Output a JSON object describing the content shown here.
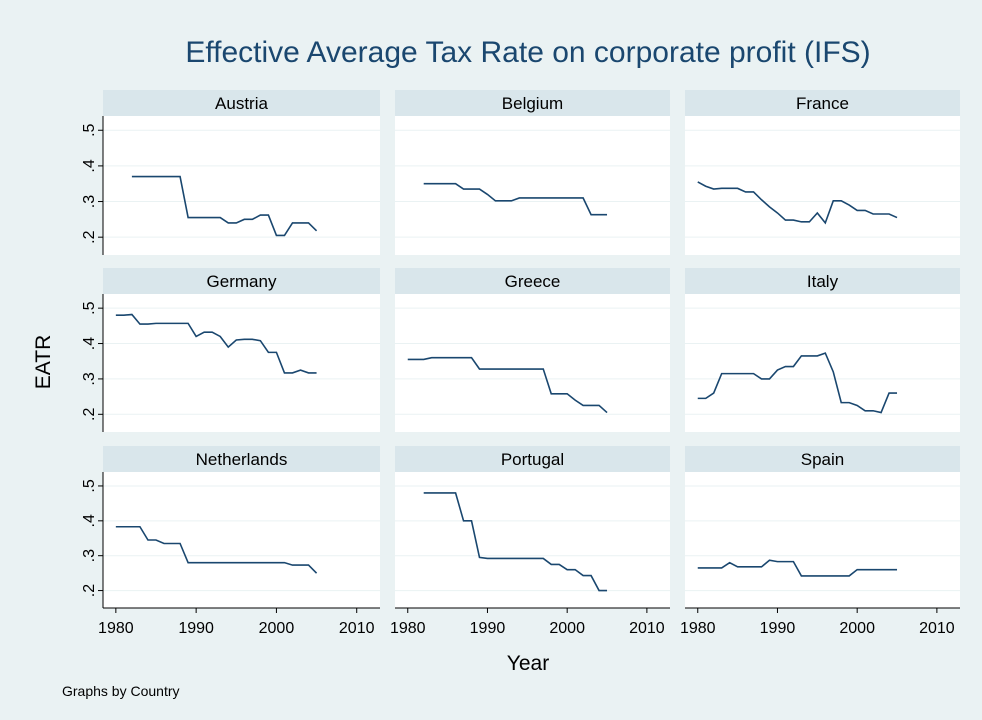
{
  "title": "Effective Average Tax Rate on corporate profit (IFS)",
  "x_label": "Year",
  "y_label": "EATR",
  "note": "Graphs by Country",
  "chart_data": [
    {
      "type": "line",
      "title": "Austria",
      "color": "#1a476f",
      "x": [
        1982,
        1983,
        1984,
        1985,
        1986,
        1987,
        1988,
        1989,
        1990,
        1991,
        1992,
        1993,
        1994,
        1995,
        1996,
        1997,
        1998,
        1999,
        2000,
        2001,
        2002,
        2003,
        2004,
        2005
      ],
      "values": [
        0.37,
        0.37,
        0.37,
        0.37,
        0.37,
        0.37,
        0.37,
        0.255,
        0.255,
        0.255,
        0.255,
        0.255,
        0.24,
        0.24,
        0.25,
        0.25,
        0.262,
        0.262,
        0.205,
        0.205,
        0.24,
        0.24,
        0.24,
        0.218
      ],
      "xlim": [
        1978.4,
        2012.9
      ],
      "xticks": [
        1980,
        1990,
        2000,
        2010
      ],
      "ylim": [
        0.15,
        0.54
      ],
      "yticks": [
        {
          "value": 0.2,
          "label": ".2"
        },
        {
          "value": 0.3,
          "label": ".3"
        },
        {
          "value": 0.4,
          "label": ".4"
        },
        {
          "value": 0.5,
          "label": ".5"
        }
      ]
    },
    {
      "type": "line",
      "title": "Belgium",
      "color": "#1a476f",
      "x": [
        1982,
        1983,
        1984,
        1985,
        1986,
        1987,
        1988,
        1989,
        1990,
        1991,
        1992,
        1993,
        1994,
        1995,
        1996,
        1997,
        1998,
        1999,
        2000,
        2001,
        2002,
        2003,
        2004,
        2005
      ],
      "values": [
        0.35,
        0.35,
        0.35,
        0.35,
        0.35,
        0.335,
        0.335,
        0.335,
        0.32,
        0.302,
        0.302,
        0.302,
        0.31,
        0.31,
        0.31,
        0.31,
        0.31,
        0.31,
        0.31,
        0.31,
        0.31,
        0.263,
        0.263,
        0.263
      ],
      "xlim": [
        1978.4,
        2012.9
      ],
      "xticks": [
        1980,
        1990,
        2000,
        2010
      ],
      "ylim": [
        0.15,
        0.54
      ],
      "yticks": [
        {
          "value": 0.2,
          "label": ".2"
        },
        {
          "value": 0.3,
          "label": ".3"
        },
        {
          "value": 0.4,
          "label": ".4"
        },
        {
          "value": 0.5,
          "label": ".5"
        }
      ]
    },
    {
      "type": "line",
      "title": "France",
      "color": "#1a476f",
      "x": [
        1980,
        1981,
        1982,
        1983,
        1984,
        1985,
        1986,
        1987,
        1988,
        1989,
        1990,
        1991,
        1992,
        1993,
        1994,
        1995,
        1996,
        1997,
        1998,
        1999,
        2000,
        2001,
        2002,
        2003,
        2004,
        2005
      ],
      "values": [
        0.355,
        0.343,
        0.335,
        0.337,
        0.337,
        0.337,
        0.327,
        0.327,
        0.305,
        0.285,
        0.268,
        0.248,
        0.248,
        0.243,
        0.243,
        0.268,
        0.24,
        0.302,
        0.302,
        0.29,
        0.275,
        0.275,
        0.265,
        0.265,
        0.265,
        0.255
      ],
      "xlim": [
        1978.4,
        2012.9
      ],
      "xticks": [
        1980,
        1990,
        2000,
        2010
      ],
      "ylim": [
        0.15,
        0.54
      ],
      "yticks": [
        {
          "value": 0.2,
          "label": ".2"
        },
        {
          "value": 0.3,
          "label": ".3"
        },
        {
          "value": 0.4,
          "label": ".4"
        },
        {
          "value": 0.5,
          "label": ".5"
        }
      ]
    },
    {
      "type": "line",
      "title": "Germany",
      "color": "#1a476f",
      "x": [
        1980,
        1981,
        1982,
        1983,
        1984,
        1985,
        1986,
        1987,
        1988,
        1989,
        1990,
        1991,
        1992,
        1993,
        1994,
        1995,
        1996,
        1997,
        1998,
        1999,
        2000,
        2001,
        2002,
        2003,
        2004,
        2005
      ],
      "values": [
        0.48,
        0.48,
        0.482,
        0.455,
        0.455,
        0.457,
        0.457,
        0.457,
        0.457,
        0.457,
        0.42,
        0.432,
        0.432,
        0.42,
        0.39,
        0.41,
        0.412,
        0.412,
        0.408,
        0.375,
        0.375,
        0.317,
        0.317,
        0.325,
        0.317,
        0.317
      ],
      "xlim": [
        1978.4,
        2012.9
      ],
      "xticks": [
        1980,
        1990,
        2000,
        2010
      ],
      "ylim": [
        0.15,
        0.54
      ],
      "yticks": [
        {
          "value": 0.2,
          "label": ".2"
        },
        {
          "value": 0.3,
          "label": ".3"
        },
        {
          "value": 0.4,
          "label": ".4"
        },
        {
          "value": 0.5,
          "label": ".5"
        }
      ]
    },
    {
      "type": "line",
      "title": "Greece",
      "color": "#1a476f",
      "x": [
        1980,
        1981,
        1982,
        1983,
        1984,
        1985,
        1986,
        1987,
        1988,
        1989,
        1990,
        1991,
        1992,
        1993,
        1994,
        1995,
        1996,
        1997,
        1998,
        1999,
        2000,
        2001,
        2002,
        2003,
        2004,
        2005
      ],
      "values": [
        0.355,
        0.355,
        0.355,
        0.36,
        0.36,
        0.36,
        0.36,
        0.36,
        0.36,
        0.328,
        0.328,
        0.328,
        0.328,
        0.328,
        0.328,
        0.328,
        0.328,
        0.328,
        0.258,
        0.258,
        0.258,
        0.24,
        0.225,
        0.225,
        0.225,
        0.205
      ],
      "xlim": [
        1978.4,
        2012.9
      ],
      "xticks": [
        1980,
        1990,
        2000,
        2010
      ],
      "ylim": [
        0.15,
        0.54
      ],
      "yticks": [
        {
          "value": 0.2,
          "label": ".2"
        },
        {
          "value": 0.3,
          "label": ".3"
        },
        {
          "value": 0.4,
          "label": ".4"
        },
        {
          "value": 0.5,
          "label": ".5"
        }
      ]
    },
    {
      "type": "line",
      "title": "Italy",
      "color": "#1a476f",
      "x": [
        1980,
        1981,
        1982,
        1983,
        1984,
        1985,
        1986,
        1987,
        1988,
        1989,
        1990,
        1991,
        1992,
        1993,
        1994,
        1995,
        1996,
        1997,
        1998,
        1999,
        2000,
        2001,
        2002,
        2003,
        2004,
        2005
      ],
      "values": [
        0.245,
        0.245,
        0.26,
        0.315,
        0.315,
        0.315,
        0.315,
        0.315,
        0.3,
        0.3,
        0.325,
        0.335,
        0.335,
        0.365,
        0.365,
        0.365,
        0.373,
        0.32,
        0.233,
        0.233,
        0.225,
        0.21,
        0.21,
        0.205,
        0.26,
        0.26
      ],
      "xlim": [
        1978.4,
        2012.9
      ],
      "xticks": [
        1980,
        1990,
        2000,
        2010
      ],
      "ylim": [
        0.15,
        0.54
      ],
      "yticks": [
        {
          "value": 0.2,
          "label": ".2"
        },
        {
          "value": 0.3,
          "label": ".3"
        },
        {
          "value": 0.4,
          "label": ".4"
        },
        {
          "value": 0.5,
          "label": ".5"
        }
      ]
    },
    {
      "type": "line",
      "title": "Netherlands",
      "color": "#1a476f",
      "x": [
        1980,
        1981,
        1982,
        1983,
        1984,
        1985,
        1986,
        1987,
        1988,
        1989,
        1990,
        1991,
        1992,
        1993,
        1994,
        1995,
        1996,
        1997,
        1998,
        1999,
        2000,
        2001,
        2002,
        2003,
        2004,
        2005
      ],
      "values": [
        0.383,
        0.383,
        0.383,
        0.383,
        0.345,
        0.345,
        0.335,
        0.335,
        0.335,
        0.28,
        0.28,
        0.28,
        0.28,
        0.28,
        0.28,
        0.28,
        0.28,
        0.28,
        0.28,
        0.28,
        0.28,
        0.28,
        0.273,
        0.273,
        0.273,
        0.25
      ],
      "xlim": [
        1978.4,
        2012.9
      ],
      "xticks": [
        1980,
        1990,
        2000,
        2010
      ],
      "ylim": [
        0.15,
        0.54
      ],
      "yticks": [
        {
          "value": 0.2,
          "label": ".2"
        },
        {
          "value": 0.3,
          "label": ".3"
        },
        {
          "value": 0.4,
          "label": ".4"
        },
        {
          "value": 0.5,
          "label": ".5"
        }
      ]
    },
    {
      "type": "line",
      "title": "Portugal",
      "color": "#1a476f",
      "x": [
        1982,
        1983,
        1984,
        1985,
        1986,
        1987,
        1988,
        1989,
        1990,
        1991,
        1992,
        1993,
        1994,
        1995,
        1996,
        1997,
        1998,
        1999,
        2000,
        2001,
        2002,
        2003,
        2004,
        2005
      ],
      "values": [
        0.48,
        0.48,
        0.48,
        0.48,
        0.48,
        0.4,
        0.4,
        0.295,
        0.292,
        0.292,
        0.292,
        0.292,
        0.292,
        0.292,
        0.292,
        0.292,
        0.275,
        0.275,
        0.26,
        0.26,
        0.243,
        0.243,
        0.2,
        0.2
      ],
      "xlim": [
        1978.4,
        2012.9
      ],
      "xticks": [
        1980,
        1990,
        2000,
        2010
      ],
      "ylim": [
        0.15,
        0.54
      ],
      "yticks": [
        {
          "value": 0.2,
          "label": ".2"
        },
        {
          "value": 0.3,
          "label": ".3"
        },
        {
          "value": 0.4,
          "label": ".4"
        },
        {
          "value": 0.5,
          "label": ".5"
        }
      ]
    },
    {
      "type": "line",
      "title": "Spain",
      "color": "#1a476f",
      "x": [
        1980,
        1981,
        1982,
        1983,
        1984,
        1985,
        1986,
        1987,
        1988,
        1989,
        1990,
        1991,
        1992,
        1993,
        1994,
        1995,
        1996,
        1997,
        1998,
        1999,
        2000,
        2001,
        2002,
        2003,
        2004,
        2005
      ],
      "values": [
        0.265,
        0.265,
        0.265,
        0.265,
        0.28,
        0.268,
        0.268,
        0.268,
        0.268,
        0.287,
        0.283,
        0.283,
        0.283,
        0.242,
        0.242,
        0.242,
        0.242,
        0.242,
        0.242,
        0.242,
        0.26,
        0.26,
        0.26,
        0.26,
        0.26,
        0.26
      ],
      "xlim": [
        1978.4,
        2012.9
      ],
      "xticks": [
        1980,
        1990,
        2000,
        2010
      ],
      "ylim": [
        0.15,
        0.54
      ],
      "yticks": [
        {
          "value": 0.2,
          "label": ".2"
        },
        {
          "value": 0.3,
          "label": ".3"
        },
        {
          "value": 0.4,
          "label": ".4"
        },
        {
          "value": 0.5,
          "label": ".5"
        }
      ]
    }
  ]
}
